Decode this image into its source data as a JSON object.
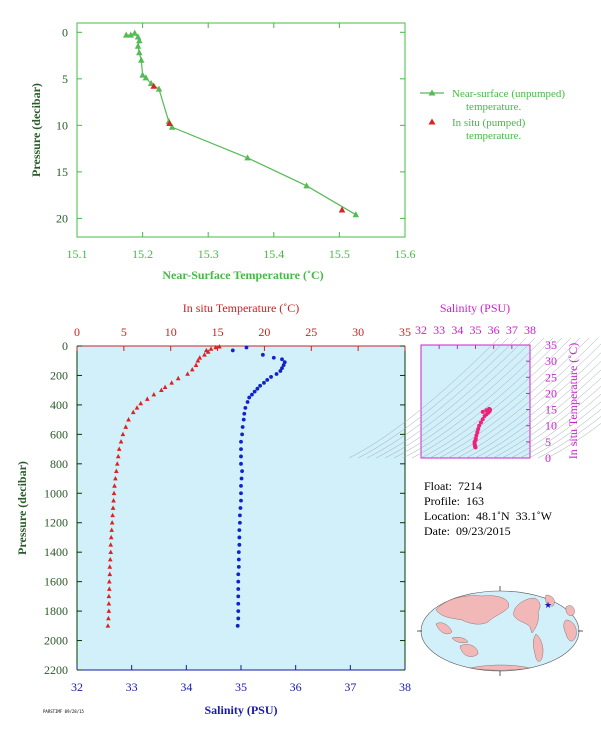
{
  "chart_data": [
    {
      "type": "line",
      "xlabel": "Near-Surface Temperature (˚C)",
      "ylabel": "Pressure (decibar)",
      "xlim": [
        15.1,
        15.6
      ],
      "ylim": [
        22,
        -1
      ],
      "xticks": [
        "15.1",
        "15.2",
        "15.3",
        "15.4",
        "15.5",
        "15.6"
      ],
      "yticks": [
        "0",
        "5",
        "10",
        "15",
        "20"
      ],
      "colors": {
        "axis": "#44bb44",
        "near": "#55bb55",
        "insitu": "#dd2222"
      },
      "legend": {
        "position": "right",
        "near_l1": "Near-surface (unpumped)",
        "near_l2": "temperature.",
        "insitu_l1": "In situ (pumped)",
        "insitu_l2": "temperature."
      },
      "series": [
        {
          "name": "Near-surface (unpumped) temperature.",
          "x": [
            15.175,
            15.182,
            15.188,
            15.193,
            15.195,
            15.193,
            15.195,
            15.198,
            15.2,
            15.205,
            15.213,
            15.225,
            15.24,
            15.245,
            15.36,
            15.45,
            15.525
          ],
          "y": [
            0.3,
            0.3,
            0.1,
            0.5,
            0.9,
            1.5,
            2.2,
            3.0,
            4.6,
            4.9,
            5.5,
            6.1,
            9.6,
            10.2,
            13.5,
            16.5,
            19.6
          ]
        },
        {
          "name": "In situ (pumped) temperature.",
          "x": [
            15.217,
            15.241,
            15.504
          ],
          "y": [
            5.8,
            9.8,
            19.1
          ]
        }
      ]
    },
    {
      "type": "scatter",
      "title_top": "In situ Temperature (˚C)",
      "xlabel": "Salinity (PSU)",
      "ylabel": "Pressure (decibar)",
      "temp_lim": [
        0,
        35
      ],
      "sal_lim": [
        32,
        38
      ],
      "ylim": [
        2200,
        0
      ],
      "temp_ticks": [
        "0",
        "5",
        "10",
        "15",
        "20",
        "25",
        "30",
        "35"
      ],
      "sal_ticks": [
        "32",
        "33",
        "34",
        "35",
        "36",
        "37",
        "38"
      ],
      "p_ticks": [
        "0",
        "200",
        "400",
        "600",
        "800",
        "1000",
        "1200",
        "1400",
        "1600",
        "1800",
        "2000",
        "2200"
      ],
      "colors": {
        "bg": "#d2f0fa",
        "temp": "#dd2222",
        "sal": "#1122cc",
        "frame": "#003a00",
        "temp_axis": "#cc2222",
        "sal_axis": "#1a1aaa"
      },
      "temperature": {
        "p": [
          5,
          10,
          20,
          30,
          40,
          60,
          80,
          100,
          130,
          160,
          190,
          220,
          250,
          280,
          300,
          330,
          360,
          390,
          420,
          450,
          500,
          550,
          600,
          650,
          700,
          750,
          800,
          850,
          900,
          950,
          1000,
          1050,
          1100,
          1150,
          1200,
          1250,
          1300,
          1350,
          1400,
          1450,
          1500,
          1550,
          1600,
          1650,
          1700,
          1750,
          1800,
          1850,
          1900
        ],
        "t": [
          15.2,
          14.8,
          14.3,
          13.8,
          14.0,
          13.6,
          13.1,
          12.9,
          12.7,
          12.3,
          11.8,
          10.8,
          10.1,
          9.4,
          9.0,
          8.2,
          7.5,
          6.8,
          6.4,
          6.0,
          5.5,
          5.2,
          4.9,
          4.7,
          4.5,
          4.4,
          4.3,
          4.2,
          4.1,
          4.0,
          3.95,
          3.9,
          3.85,
          3.8,
          3.75,
          3.7,
          3.65,
          3.6,
          3.6,
          3.55,
          3.5,
          3.5,
          3.45,
          3.45,
          3.4,
          3.4,
          3.4,
          3.35,
          3.3
        ]
      },
      "salinity": {
        "p": [
          10,
          30,
          60,
          80,
          90,
          110,
          130,
          150,
          170,
          190,
          210,
          230,
          250,
          270,
          290,
          310,
          330,
          350,
          380,
          420,
          460,
          500,
          550,
          600,
          650,
          700,
          750,
          800,
          850,
          900,
          950,
          1000,
          1050,
          1100,
          1150,
          1200,
          1250,
          1300,
          1350,
          1400,
          1450,
          1500,
          1550,
          1600,
          1650,
          1700,
          1750,
          1800,
          1850,
          1900
        ],
        "s": [
          35.1,
          34.85,
          35.4,
          35.6,
          35.75,
          35.8,
          35.78,
          35.75,
          35.72,
          35.65,
          35.55,
          35.48,
          35.42,
          35.35,
          35.3,
          35.25,
          35.2,
          35.15,
          35.12,
          35.08,
          35.06,
          35.05,
          35.03,
          35.02,
          35.0,
          35.0,
          35.0,
          35.0,
          35.02,
          35.01,
          35.0,
          35.0,
          35.0,
          34.99,
          34.98,
          34.98,
          34.97,
          34.97,
          34.97,
          34.96,
          34.96,
          34.96,
          34.95,
          34.95,
          34.95,
          34.95,
          34.95,
          34.95,
          34.95,
          34.94
        ]
      }
    },
    {
      "type": "scatter",
      "title": "Salinity (PSU)",
      "ylabel": "In situ Temperature (˚C)",
      "xlim": [
        32,
        38
      ],
      "ylim": [
        0,
        35
      ],
      "xticks": [
        "32",
        "33",
        "34",
        "35",
        "36",
        "37",
        "38"
      ],
      "yticks": [
        "0",
        "5",
        "10",
        "15",
        "20",
        "25",
        "30",
        "35"
      ],
      "colors": {
        "axis": "#cc22cc",
        "points": "#ee2277",
        "bg": "#d2f0fa"
      },
      "points": {
        "s": [
          35.0,
          34.98,
          34.97,
          34.96,
          34.95,
          34.95,
          35.0,
          35.02,
          35.05,
          35.1,
          35.15,
          35.2,
          35.3,
          35.4,
          35.5,
          35.6,
          35.7,
          35.78,
          35.8,
          35.75,
          35.6,
          35.4
        ],
        "t": [
          3.3,
          3.5,
          3.8,
          4.1,
          4.5,
          5.0,
          5.5,
          6.0,
          7.0,
          8.0,
          9.0,
          10.0,
          11.0,
          12.0,
          13.0,
          13.5,
          14.0,
          14.5,
          15.0,
          15.2,
          14.8,
          14.3
        ]
      }
    }
  ],
  "info": {
    "float": "Float:  7214",
    "profile": "Profile:  163",
    "location": "Location:  48.1˚N  33.1˚W",
    "date": "Date:  09/23/2015"
  },
  "footer": "PARSTIMF 09/28/15",
  "map": {
    "land_color": "#f2b8b8",
    "ocean_color": "#d2f0fa",
    "marker": "#1a1aaa"
  }
}
